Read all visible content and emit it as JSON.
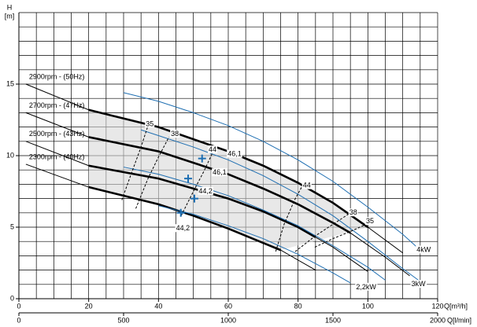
{
  "chart_data": {
    "type": "line",
    "y_label": "H",
    "y_unit": "[m]",
    "x_label": "Q[m³/h]",
    "x2_label": "Q[l/min]",
    "xlim": [
      0,
      120
    ],
    "xticks": [
      0,
      20,
      40,
      60,
      80,
      100,
      120
    ],
    "x2lim": [
      0,
      2000
    ],
    "x2ticks": [
      0,
      500,
      1000,
      1500,
      2000
    ],
    "ylim": [
      0,
      20
    ],
    "yticks": [
      0,
      5,
      10,
      15
    ],
    "grid": true,
    "x_grid_step": 5,
    "y_grid_step": 1,
    "shaded_range": true,
    "series": [
      {
        "name": "2900rpm - (50Hz)",
        "color": "#000000",
        "width": 1,
        "x": [
          2,
          20,
          40,
          60,
          70,
          80,
          90,
          100,
          110
        ],
        "values": [
          15.0,
          13.2,
          12.0,
          10.3,
          9.3,
          8.1,
          6.7,
          5.0,
          3.2
        ]
      },
      {
        "color": "#000000",
        "width": 2.6,
        "x": [
          20,
          40,
          60,
          70,
          80,
          90,
          100
        ],
        "values": [
          13.2,
          12.0,
          10.3,
          9.3,
          8.1,
          6.7,
          5.0
        ]
      },
      {
        "name": "2700rpm - (47Hz)",
        "color": "#000000",
        "width": 1,
        "x": [
          2,
          20,
          40,
          60,
          70,
          80,
          90,
          95,
          105,
          112
        ],
        "values": [
          13.0,
          11.3,
          10.3,
          8.7,
          7.7,
          6.6,
          5.3,
          4.6,
          2.9,
          1.6
        ]
      },
      {
        "color": "#000000",
        "width": 2.6,
        "x": [
          20,
          40,
          60,
          70,
          80,
          90,
          95
        ],
        "values": [
          11.3,
          10.3,
          8.7,
          7.7,
          6.6,
          5.3,
          4.6
        ]
      },
      {
        "name": "2500rpm - (43Hz)",
        "color": "#000000",
        "width": 1,
        "x": [
          2,
          20,
          40,
          60,
          70,
          80,
          85,
          90,
          100
        ],
        "values": [
          11.0,
          9.3,
          8.4,
          7.0,
          6.1,
          5.0,
          4.3,
          3.6,
          1.9
        ]
      },
      {
        "color": "#000000",
        "width": 2.6,
        "x": [
          20,
          40,
          60,
          70,
          80,
          85
        ],
        "values": [
          9.3,
          8.4,
          7.0,
          6.1,
          5.0,
          4.3
        ]
      },
      {
        "name": "2300rpm - (40Hz)",
        "color": "#000000",
        "width": 1,
        "x": [
          2,
          20,
          40,
          50,
          60,
          70,
          75,
          85
        ],
        "values": [
          9.4,
          7.8,
          6.6,
          5.8,
          4.9,
          3.9,
          3.4,
          2.0
        ]
      },
      {
        "color": "#000000",
        "width": 2.6,
        "x": [
          20,
          40,
          50,
          60,
          70,
          75
        ],
        "values": [
          7.8,
          6.6,
          5.8,
          4.9,
          3.9,
          3.4
        ]
      },
      {
        "color": "#1f6fb2",
        "width": 1,
        "x": [
          30,
          40,
          50,
          60,
          70,
          80,
          90,
          100,
          110,
          115
        ],
        "values": [
          14.4,
          13.8,
          13.0,
          12.1,
          11.0,
          9.7,
          8.2,
          6.4,
          4.5,
          3.4
        ]
      },
      {
        "color": "#1f6fb2",
        "width": 1,
        "x": [
          35,
          40,
          50,
          60,
          70,
          80,
          90,
          100,
          110,
          115
        ],
        "values": [
          11.8,
          11.4,
          10.6,
          9.7,
          8.6,
          7.3,
          5.8,
          4.0,
          2.1,
          1.2
        ]
      },
      {
        "color": "#1f6fb2",
        "width": 1,
        "x": [
          30,
          40,
          50,
          60,
          70,
          80,
          90,
          100,
          105
        ],
        "values": [
          9.2,
          8.7,
          8.0,
          7.2,
          6.2,
          5.1,
          3.7,
          2.2,
          1.3
        ]
      },
      {
        "color": "#1f6fb2",
        "width": 1,
        "x": [
          40,
          50,
          60,
          70,
          80,
          90,
          95
        ],
        "values": [
          6.5,
          5.9,
          5.1,
          4.2,
          3.1,
          1.8,
          1.1
        ]
      },
      {
        "color": "#000000",
        "width": 1,
        "dash": true,
        "x": [
          29.5,
          32,
          35,
          37
        ],
        "values": [
          6.9,
          8.6,
          10.6,
          12.1
        ]
      },
      {
        "color": "#000000",
        "width": 1,
        "dash": true,
        "x": [
          33.5,
          37,
          40,
          43
        ],
        "values": [
          6.3,
          8.4,
          9.9,
          11.3
        ]
      },
      {
        "color": "#000000",
        "width": 1,
        "dash": true,
        "x": [
          46.5,
          50,
          53,
          55.5
        ],
        "values": [
          5.8,
          7.5,
          8.9,
          10.2
        ]
      },
      {
        "color": "#000000",
        "width": 1,
        "dash": true,
        "x": [
          73.6,
          76,
          79,
          81.5
        ],
        "values": [
          3.3,
          5.2,
          6.9,
          8.0
        ]
      },
      {
        "color": "#000000",
        "width": 1,
        "dash": true,
        "x": [
          79.2,
          85,
          90,
          95
        ],
        "values": [
          3.3,
          4.4,
          5.2,
          6.0
        ]
      },
      {
        "color": "#000000",
        "width": 1,
        "dash": true,
        "x": [
          84.8,
          90,
          95,
          99.5
        ],
        "values": [
          3.6,
          4.2,
          4.7,
          5.2
        ]
      },
      {
        "color": "#1f6fb2",
        "marker": "cross",
        "x": [
          52.5,
          48.5,
          50.3,
          46.4
        ],
        "values": [
          9.8,
          8.4,
          7.0,
          6.0
        ]
      }
    ],
    "annotations": [
      {
        "text": "35",
        "x": 37.5,
        "y": 12.2
      },
      {
        "text": "38",
        "x": 44.7,
        "y": 11.5
      },
      {
        "text": "44",
        "x": 55.5,
        "y": 10.4
      },
      {
        "text": "46,1",
        "x": 61.8,
        "y": 10.1
      },
      {
        "text": "46,1",
        "x": 57.5,
        "y": 8.8
      },
      {
        "text": "44,2",
        "x": 53.5,
        "y": 7.5
      },
      {
        "text": "44,2",
        "x": 47.0,
        "y": 4.9
      },
      {
        "text": "44",
        "x": 82.5,
        "y": 7.9
      },
      {
        "text": "38",
        "x": 95.8,
        "y": 6.0
      },
      {
        "text": "35",
        "x": 100.6,
        "y": 5.4
      },
      {
        "text": "4kW",
        "x": 116.0,
        "y": 3.4
      },
      {
        "text": "3kW",
        "x": 114.5,
        "y": 1.0
      },
      {
        "text": "2,2kW",
        "x": 99.5,
        "y": 0.8
      }
    ]
  }
}
